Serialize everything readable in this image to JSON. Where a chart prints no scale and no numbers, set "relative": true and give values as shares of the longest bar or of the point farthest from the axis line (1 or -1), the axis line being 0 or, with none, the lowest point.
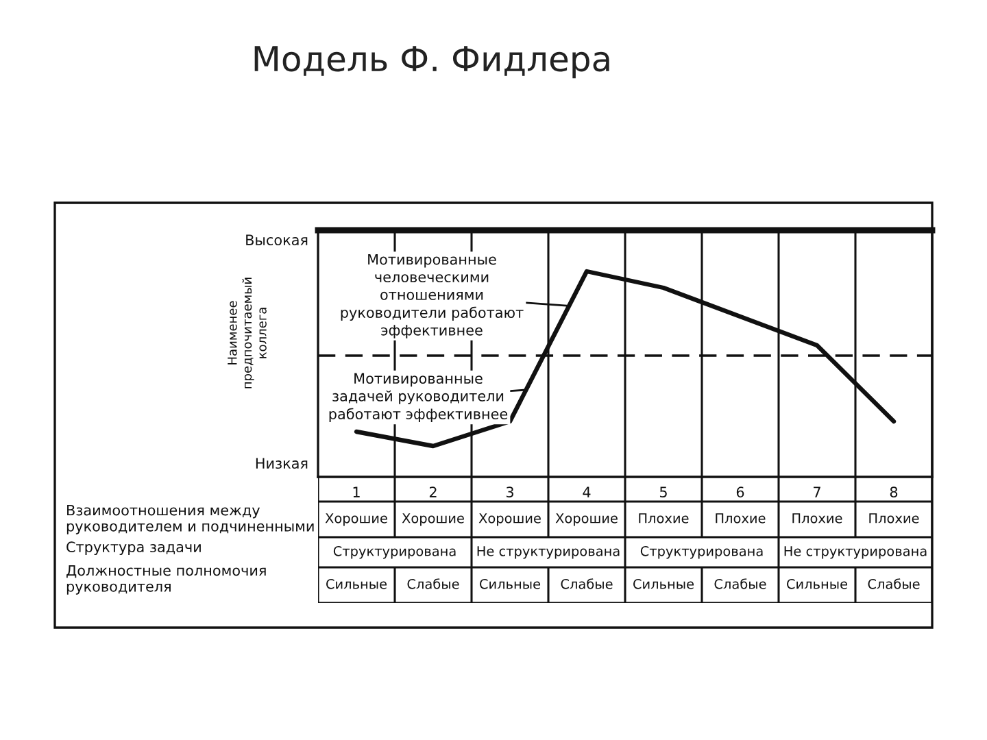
{
  "chart_data": {
    "type": "line",
    "title": "Модель Ф. Фидлера",
    "ylabel": "Наименее\nпредпочитаемый\nколлега",
    "categories": [
      "1",
      "2",
      "3",
      "4",
      "5",
      "6",
      "7",
      "8"
    ],
    "values": [
      0.22,
      0.15,
      0.27,
      1.0,
      0.92,
      0.78,
      0.64,
      0.27
    ],
    "color": "#111111",
    "relative": true,
    "line_style": "solid",
    "grid": "x",
    "tick_labels": "x",
    "ref_lines": [
      {
        "axis": "y",
        "value": 0.59,
        "color": "#111111",
        "line_style": "dashed"
      }
    ],
    "annotations": [
      "Мотивированные\nчеловеческими\nотношениями\nруководители работают\nэффективнее",
      "Мотивированные\nзадачей руководители\nработают эффективнее",
      "Высокая",
      "Низкая",
      "Взаимоотношения между\nруководителем и подчиненными",
      "Хорошие",
      "Хорошие",
      "Хорошие",
      "Хорошие",
      "Плохие",
      "Плохие",
      "Плохие",
      "Плохие",
      "Структура задачи",
      "Структурирована",
      "Не структурирована",
      "Структурирована",
      "Не структурирована",
      "Должностные полномочия\nруководителя",
      "Сильные",
      "Слабые",
      "Сильные",
      "Слабые",
      "Сильные",
      "Слабые",
      "Сильные",
      "Слабые"
    ]
  }
}
